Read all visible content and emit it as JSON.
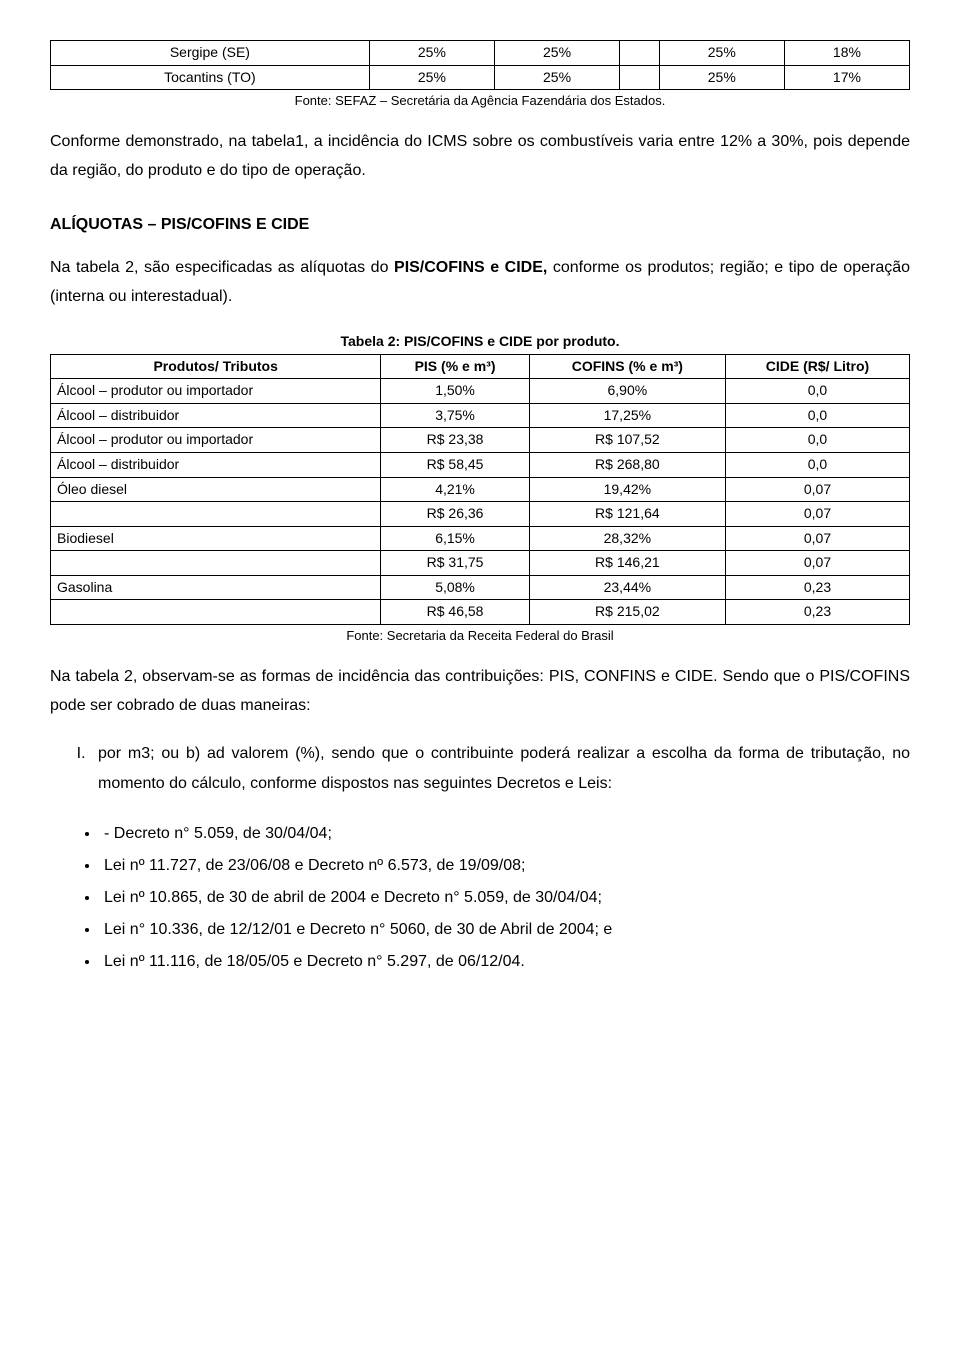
{
  "table1": {
    "rows": [
      {
        "state": "Sergipe (SE)",
        "c1": "25%",
        "c2": "25%",
        "c3": "",
        "c4": "25%",
        "c5": "18%"
      },
      {
        "state": "Tocantins (TO)",
        "c1": "25%",
        "c2": "25%",
        "c3": "",
        "c4": "25%",
        "c5": "17%"
      }
    ],
    "fonte": "Fonte: SEFAZ – Secretária da Agência Fazendária dos Estados."
  },
  "para1": "Conforme demonstrado, na tabela1, a incidência do ICMS sobre os combustíveis varia entre 12% a 30%, pois depende da região, do produto e do tipo de operação.",
  "heading1": "ALÍQUOTAS – PIS/COFINS E CIDE",
  "para2_pre": "Na tabela 2, são especificadas as alíquotas do ",
  "para2_bold": "PIS/COFINS e CIDE,",
  "para2_post": " conforme os produtos; região; e tipo de operação (interna ou interestadual).",
  "table2": {
    "caption": "Tabela 2: PIS/COFINS e CIDE por produto.",
    "headers": [
      "Produtos/ Tributos",
      "PIS (% e m³)",
      "COFINS (% e m³)",
      "CIDE (R$/ Litro)"
    ],
    "rows": [
      [
        "Álcool – produtor ou importador",
        "1,50%",
        "6,90%",
        "0,0"
      ],
      [
        "Álcool – distribuidor",
        "3,75%",
        "17,25%",
        "0,0"
      ],
      [
        "Álcool – produtor ou importador",
        "R$ 23,38",
        "R$ 107,52",
        "0,0"
      ],
      [
        "Álcool – distribuidor",
        "R$ 58,45",
        "R$ 268,80",
        "0,0"
      ],
      [
        "Óleo diesel",
        "4,21%",
        "19,42%",
        "0,07"
      ],
      [
        "",
        "R$  26,36",
        "R$ 121,64",
        "0,07"
      ],
      [
        "Biodiesel",
        "6,15%",
        "28,32%",
        "0,07"
      ],
      [
        "",
        "R$  31,75",
        "R$ 146,21",
        "0,07"
      ],
      [
        "Gasolina",
        "5,08%",
        "23,44%",
        "0,23"
      ],
      [
        "",
        "R$  46,58",
        "R$ 215,02",
        "0,23"
      ]
    ],
    "fonte": "Fonte: Secretaria da Receita Federal do Brasil"
  },
  "para3": "Na tabela 2, observam-se as formas de incidência das contribuições: PIS, CONFINS e CIDE. Sendo que o PIS/COFINS pode ser cobrado de duas maneiras:",
  "list_item": "por m3; ou b) ad valorem (%), sendo que o contribuinte poderá realizar a escolha da forma de tributação, no momento do cálculo, conforme dispostos nas seguintes Decretos e Leis:",
  "bullets": [
    "- Decreto n° 5.059, de 30/04/04;",
    "Lei nº 11.727, de 23/06/08 e Decreto nº 6.573, de 19/09/08;",
    "Lei nº 10.865, de 30 de abril de 2004 e Decreto n° 5.059, de 30/04/04;",
    "Lei n° 10.336, de 12/12/01 e Decreto n° 5060, de 30 de Abril de 2004; e",
    "Lei nº 11.116, de 18/05/05 e Decreto n° 5.297, de 06/12/04."
  ]
}
